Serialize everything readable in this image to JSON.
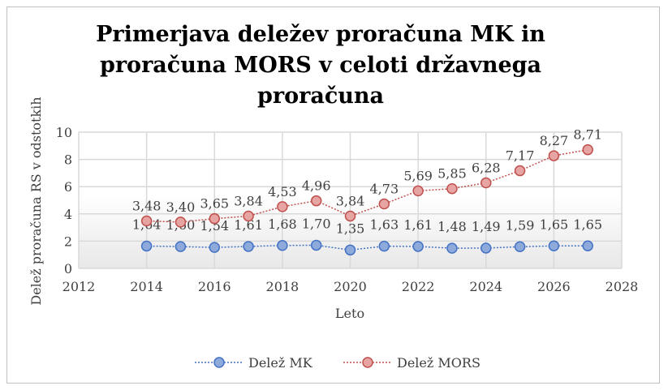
{
  "chart_data": {
    "type": "line",
    "title": "Primerjava deležev proračuna MK in proračuna MORS v celoti državnega proračuna",
    "title_lines": [
      "Primerjava deležev proračuna MK in",
      "proračuna MORS v celoti državnega",
      "proračuna"
    ],
    "xlabel": "Leto",
    "ylabel": "Delež proračuna RS v odstotkih",
    "xlim": [
      2012,
      2028
    ],
    "ylim": [
      0,
      10
    ],
    "xticks": [
      2012,
      2014,
      2016,
      2018,
      2020,
      2022,
      2024,
      2026,
      2028
    ],
    "yticks": [
      0,
      2,
      4,
      6,
      8,
      10
    ],
    "grid": true,
    "legend": "bottom",
    "x": [
      2014,
      2015,
      2016,
      2017,
      2018,
      2019,
      2020,
      2021,
      2022,
      2023,
      2024,
      2025,
      2026,
      2027
    ],
    "series": [
      {
        "name": "Delež MK",
        "color": "#4472c4",
        "fill": "#8eaadb",
        "values": [
          1.64,
          1.6,
          1.54,
          1.61,
          1.68,
          1.7,
          1.35,
          1.63,
          1.61,
          1.48,
          1.49,
          1.59,
          1.65,
          1.65
        ],
        "labels": [
          "1,64",
          "1,60",
          "1,54",
          "1,61",
          "1,68",
          "1,70",
          "1,35",
          "1,63",
          "1,61",
          "1,48",
          "1,49",
          "1,59",
          "1,65",
          "1,65"
        ]
      },
      {
        "name": "Delež MORS",
        "color": "#c0504d",
        "fill": "#e6a5a3",
        "values": [
          3.48,
          3.4,
          3.65,
          3.84,
          4.53,
          4.96,
          3.84,
          4.73,
          5.69,
          5.85,
          6.28,
          7.17,
          8.27,
          8.71
        ],
        "labels": [
          "3,48",
          "3,40",
          "3,65",
          "3,84",
          "4,53",
          "4,96",
          "3,84",
          "4,73",
          "5,69",
          "5,85",
          "6,28",
          "7,17",
          "8,27",
          "8,71"
        ]
      }
    ]
  }
}
